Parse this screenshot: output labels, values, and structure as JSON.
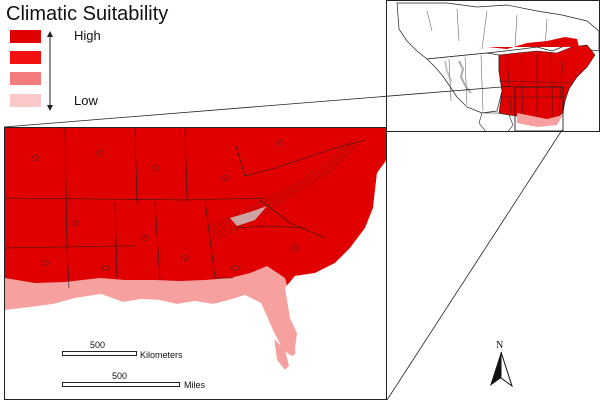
{
  "legend": {
    "title": "Climatic Suitability",
    "high_label": "High",
    "low_label": "Low",
    "colors": [
      "#e00000",
      "#f21010",
      "#f47c7c",
      "#fbc8c8"
    ]
  },
  "scale": {
    "km_value": "500",
    "km_unit": "Kilometers",
    "mi_value": "500",
    "mi_unit": "Miles"
  },
  "north_label": "N",
  "map_colors": {
    "high": "#e00000",
    "low": "#f6a0a0",
    "water": "#ffffff",
    "border": "#222222"
  }
}
